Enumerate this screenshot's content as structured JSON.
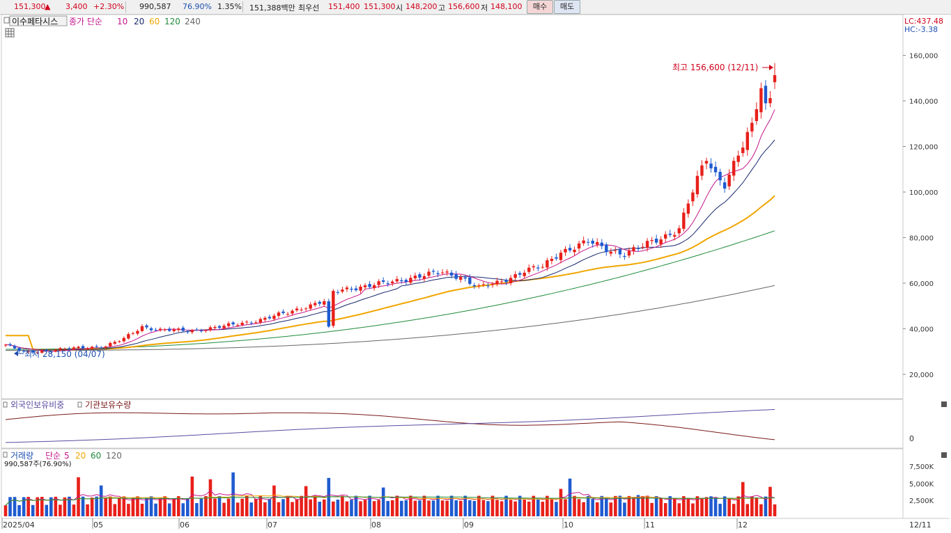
{
  "quote": {
    "price": "151,300",
    "arrow": "▲",
    "change": "3,400",
    "change_pct": "+2.30%",
    "volume": "990,587",
    "ratio": "76.90%",
    "turnover": "1.35%",
    "amount": "151,388백만",
    "best_label": "최우선",
    "best_ask": "151,400",
    "best_bid": "151,300",
    "open_label": "시",
    "open": "148,200",
    "high_label": "고",
    "high": "156,600",
    "low_label": "저",
    "low": "148,100"
  },
  "buttons": {
    "buy": "매수",
    "sell": "매도"
  },
  "main_panel": {
    "title": "이수페타시스",
    "ma_label": "종가 단순",
    "ma_periods": [
      "10",
      "20",
      "60",
      "120",
      "240"
    ],
    "lc": "LC:437.48",
    "hc": "HC:-3.38",
    "y_ticks": [
      "160,000",
      "140,000",
      "120,000",
      "100,000",
      "80,000",
      "60,000",
      "40,000",
      "20,000"
    ],
    "high_annotation": "최고 156,600 (12/11)",
    "low_annotation": "최저 28,150 (04/07)"
  },
  "holding_panel": {
    "label1": "외국인보유비중",
    "label2": "기관보유수량",
    "y_ticks": [
      "0"
    ]
  },
  "volume_panel": {
    "label": "거래량",
    "ma_label": "단순",
    "ma_periods": [
      "5",
      "20",
      "60",
      "120"
    ],
    "sub_label": "990,587주(76.90%)",
    "y_ticks": [
      "7,500K",
      "5,000K",
      "2,500K"
    ]
  },
  "x_axis": {
    "labels": [
      "2025/04",
      "05",
      "06",
      "07",
      "08",
      "09",
      "10",
      "11",
      "12"
    ],
    "right_label": "12/11"
  },
  "colors": {
    "up": "#e8201a",
    "down": "#1f5bd0",
    "ma10": "#c4168c",
    "ma20": "#18286e",
    "ma60": "#f0a500",
    "ma120": "#1e8b3a",
    "ma240": "#666666"
  },
  "chart_data": {
    "type": "candlestick",
    "price_range": [
      0,
      170000
    ],
    "high": 156600,
    "low": 28150,
    "close": 151300
  }
}
